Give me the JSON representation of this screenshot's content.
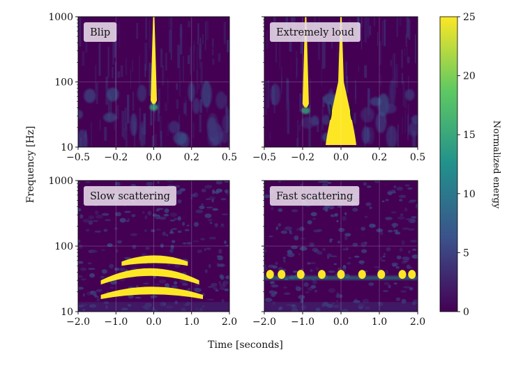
{
  "figure": {
    "xlabel": "Time [seconds]",
    "ylabel": "Frequency [Hz]",
    "colorbar": {
      "label": "Normalized energy",
      "ticks": [
        0,
        5,
        10,
        15,
        20,
        25
      ],
      "range": [
        0,
        25
      ],
      "colormap": "viridis",
      "colors": [
        "#440154",
        "#3b528b",
        "#21918c",
        "#5ec962",
        "#fde725"
      ]
    }
  },
  "chart_data": [
    {
      "type": "heatmap",
      "title": "Blip",
      "xlim": [
        -0.5,
        0.5
      ],
      "xticks": [
        "−0.5",
        "−0.2",
        "0.0",
        "0.2",
        "0.5"
      ],
      "xtick_values": [
        -0.5,
        -0.25,
        0,
        0.25,
        0.5
      ],
      "ylim": [
        10,
        1000
      ],
      "yscale": "log",
      "yticks": [
        "10",
        "100",
        "1000"
      ],
      "ytick_values": [
        10,
        100,
        1000
      ],
      "grid": true,
      "features": [
        {
          "shape": "vertical-spike",
          "t": 0.0,
          "f_min": 45,
          "f_max": 1000,
          "energy": 25
        }
      ]
    },
    {
      "type": "heatmap",
      "title": "Extremely loud",
      "xlim": [
        -0.5,
        0.5
      ],
      "xticks": [
        "−0.5",
        "−0.2",
        "0.0",
        "0.2",
        "0.5"
      ],
      "xtick_values": [
        -0.5,
        -0.25,
        0,
        0.25,
        0.5
      ],
      "ylim": [
        10,
        1000
      ],
      "yscale": "log",
      "yticks": [
        "10",
        "100",
        "1000"
      ],
      "ytick_values": [
        10,
        100,
        1000
      ],
      "grid": true,
      "features": [
        {
          "shape": "vertical-spike",
          "t": -0.23,
          "f_min": 40,
          "f_max": 1000,
          "energy": 25
        },
        {
          "shape": "triangle",
          "t": 0.0,
          "f_min": 10,
          "f_max": 1000,
          "half_width_at_fmin": 0.1,
          "energy": 25
        }
      ]
    },
    {
      "type": "heatmap",
      "title": "Slow scattering",
      "xlim": [
        -2.0,
        2.0
      ],
      "xticks": [
        "−2.0",
        "−1.0",
        "0.0",
        "1.0",
        "2.0"
      ],
      "xtick_values": [
        -2,
        -1,
        0,
        1,
        2
      ],
      "ylim": [
        10,
        1000
      ],
      "yscale": "log",
      "yticks": [
        "10",
        "100",
        "1000"
      ],
      "ytick_values": [
        10,
        100,
        1000
      ],
      "grid": true,
      "features": [
        {
          "shape": "arch",
          "t_start": -1.4,
          "t_end": 1.3,
          "f_peak": 24,
          "f_ends": 18,
          "energy": 25
        },
        {
          "shape": "arch",
          "t_start": -1.4,
          "t_end": 1.2,
          "f_peak": 46,
          "f_ends": 30,
          "energy": 25
        },
        {
          "shape": "arch",
          "t_start": -0.85,
          "t_end": 0.9,
          "f_peak": 72,
          "f_ends": 58,
          "energy": 25
        }
      ]
    },
    {
      "type": "heatmap",
      "title": "Fast scattering",
      "xlim": [
        -2.0,
        2.0
      ],
      "xticks": [
        "−2.0",
        "−1.0",
        "0.0",
        "1.0",
        "2.0"
      ],
      "xtick_values": [
        -2,
        -1,
        0,
        1,
        2
      ],
      "ylim": [
        10,
        1000
      ],
      "yscale": "log",
      "yticks": [
        "10",
        "100",
        "1000"
      ],
      "ytick_values": [
        10,
        100,
        1000
      ],
      "grid": true,
      "features": [
        {
          "shape": "blob-row",
          "t_values": [
            -1.85,
            -1.55,
            -1.05,
            -0.5,
            0.0,
            0.55,
            1.05,
            1.6,
            1.85
          ],
          "f_center": 37,
          "energy": 25
        }
      ]
    }
  ]
}
